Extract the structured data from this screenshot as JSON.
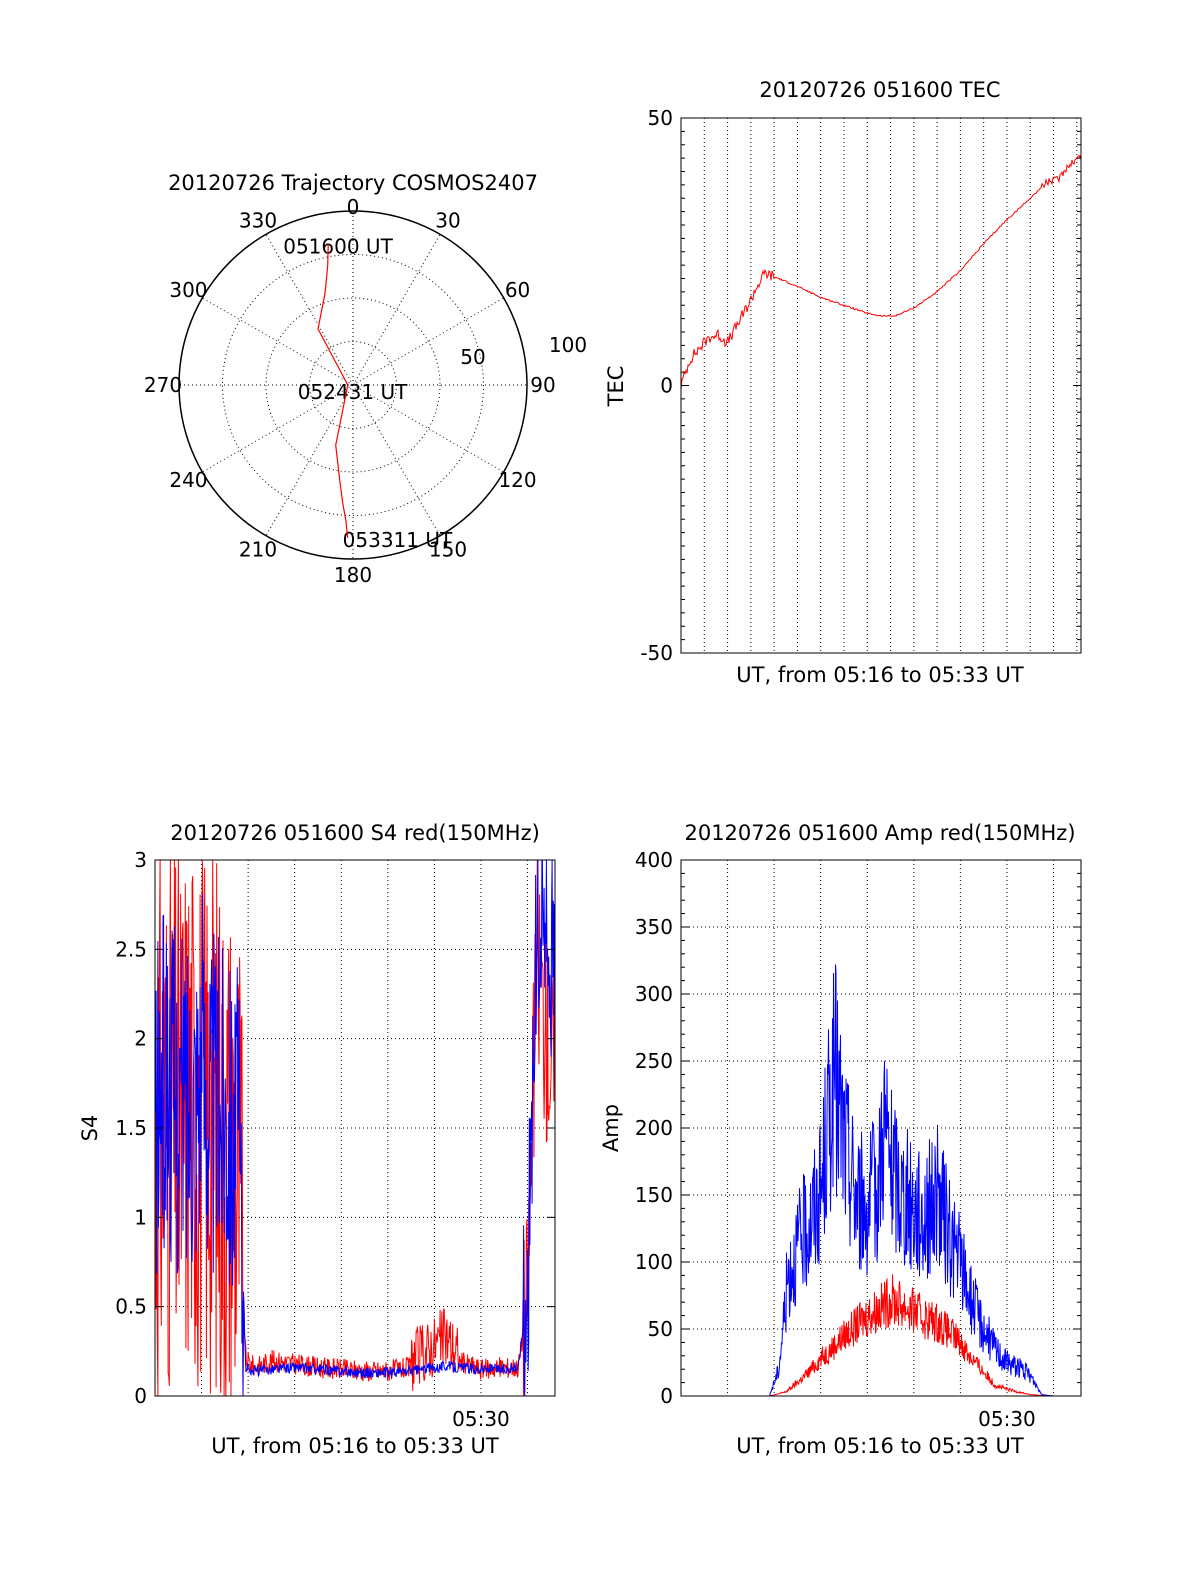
{
  "chart_data": [
    {
      "type": "polar",
      "title": "20120726 Trajectory COSMOS2407",
      "angle_labels": [
        "0",
        "30",
        "60",
        "90",
        "120",
        "150",
        "180",
        "210",
        "240",
        "270",
        "300",
        "330"
      ],
      "radius_labels": [
        "50",
        "100"
      ],
      "rlim": [
        0,
        100
      ],
      "grid": true,
      "series": [
        {
          "color": "#ff0000",
          "points": [
            [
              350,
              82
            ],
            [
              348,
              70
            ],
            [
              343,
              55
            ],
            [
              328,
              38
            ],
            [
              270,
              3
            ],
            [
              196,
              36
            ],
            [
              188,
              55
            ],
            [
              185,
              68
            ],
            [
              183,
              78
            ],
            [
              182,
              88
            ]
          ]
        }
      ],
      "annotations": [
        {
          "text": "051600 UT",
          "az": 350,
          "r": 82
        },
        {
          "text": "052431 UT",
          "az": 270,
          "r": 3
        },
        {
          "text": "053311 UT",
          "az": 182,
          "r": 88
        }
      ]
    },
    {
      "type": "line",
      "title": "20120726 051600 TEC",
      "ylabel": "TEC",
      "xlabel": "UT, from 05:16 to 05:33 UT",
      "x_range_min": [
        0,
        17.18
      ],
      "ylim": [
        -50,
        50
      ],
      "yticks": [
        "50",
        "0",
        "-50"
      ],
      "grid": "x-dotted",
      "series": [
        {
          "color": "#ff0000",
          "x": [
            0,
            0.4,
            0.8,
            1.2,
            1.6,
            2.0,
            2.5,
            3.0,
            3.2,
            3.6,
            4.2,
            5.0,
            6.0,
            7.0,
            8.0,
            8.6,
            9.2,
            10.0,
            11.0,
            12.0,
            13.0,
            14.0,
            15.0,
            15.7,
            16.2,
            16.6,
            17.18
          ],
          "y": [
            0,
            5,
            7,
            9,
            9.5,
            8,
            12,
            16,
            18,
            21,
            20,
            18.5,
            16.5,
            15,
            13.5,
            13,
            13,
            14.5,
            17.5,
            21.5,
            26.5,
            31,
            35,
            38,
            38.5,
            41,
            43
          ]
        }
      ]
    },
    {
      "type": "line",
      "title": "20120726 051600 S4 red(150MHz)",
      "ylabel": "S4",
      "xlabel": "UT, from 05:16 to 05:33 UT",
      "x_range_min": [
        0,
        17.18
      ],
      "xticks": [
        "05:30"
      ],
      "xtick_values": [
        14
      ],
      "ylim": [
        0,
        3
      ],
      "yticks": [
        "0",
        "0.5",
        "1",
        "1.5",
        "2",
        "2.5",
        "3"
      ],
      "grid": true,
      "series": [
        {
          "name": "",
          "color": "#ff0000",
          "x": [
            0,
            0.5,
            1.0,
            1.5,
            2.0,
            2.5,
            3.0,
            3.6,
            3.9,
            4.3,
            5,
            6,
            7,
            8,
            9,
            10,
            11,
            11.5,
            12,
            12.5,
            13,
            14,
            15,
            15.6,
            16,
            16.4,
            16.8,
            17.18
          ],
          "y": [
            1.4,
            1.6,
            1.5,
            1.7,
            1.55,
            1.6,
            1.4,
            1.3,
            0.2,
            0.16,
            0.2,
            0.18,
            0.16,
            0.15,
            0.14,
            0.14,
            0.16,
            0.2,
            0.25,
            0.3,
            0.2,
            0.15,
            0.16,
            0.16,
            0.5,
            2.5,
            2.0,
            1.8
          ]
        },
        {
          "name": "",
          "color": "#0000ff",
          "x": [
            0,
            0.5,
            1.0,
            1.5,
            2.0,
            2.5,
            3.0,
            3.6,
            3.9,
            4.3,
            5,
            6,
            7,
            8,
            9,
            10,
            11,
            11.5,
            12,
            12.5,
            13,
            14,
            15,
            15.6,
            16,
            16.4,
            16.8,
            17.18
          ],
          "y": [
            1.5,
            1.8,
            1.6,
            1.7,
            1.9,
            1.6,
            1.7,
            1.4,
            0.16,
            0.14,
            0.15,
            0.16,
            0.15,
            0.14,
            0.13,
            0.13,
            0.14,
            0.15,
            0.16,
            0.17,
            0.16,
            0.15,
            0.15,
            0.16,
            0.6,
            2.6,
            2.7,
            2.3
          ]
        }
      ]
    },
    {
      "type": "line",
      "title": "20120726 051600 Amp red(150MHz)",
      "ylabel": "Amp",
      "xlabel": "UT, from 05:16 to 05:33 UT",
      "x_range_min": [
        0,
        17.18
      ],
      "xticks": [
        "05:30"
      ],
      "xtick_values": [
        14
      ],
      "ylim": [
        0,
        400
      ],
      "yticks": [
        "0",
        "50",
        "100",
        "150",
        "200",
        "250",
        "300",
        "350",
        "400"
      ],
      "grid": true,
      "series": [
        {
          "name": "",
          "color": "#ff0000",
          "x": [
            0,
            3,
            3.8,
            4.5,
            5,
            5.5,
            6,
            6.5,
            7,
            7.5,
            8,
            8.5,
            9,
            9.5,
            10,
            10.5,
            11,
            11.5,
            12,
            12.5,
            13,
            13.5,
            14,
            14.5,
            15,
            16,
            17.18
          ],
          "y": [
            0,
            0,
            0,
            3,
            10,
            18,
            28,
            36,
            45,
            52,
            60,
            65,
            72,
            68,
            63,
            58,
            55,
            48,
            40,
            28,
            18,
            8,
            5,
            3,
            1,
            0,
            0
          ]
        },
        {
          "name": "",
          "color": "#0000ff",
          "x": [
            0,
            3,
            3.8,
            4.2,
            4.6,
            5,
            5.5,
            6,
            6.3,
            6.6,
            7,
            7.5,
            8,
            8.5,
            8.7,
            9,
            9.5,
            10,
            10.5,
            11,
            11.5,
            12,
            12.5,
            13,
            13.5,
            14,
            14.5,
            15,
            15.5,
            16,
            17.18
          ],
          "y": [
            0,
            0,
            0,
            20,
            90,
            110,
            130,
            150,
            200,
            240,
            190,
            150,
            140,
            160,
            210,
            170,
            150,
            140,
            135,
            150,
            120,
            100,
            70,
            50,
            35,
            25,
            22,
            15,
            1,
            0,
            0
          ]
        }
      ]
    }
  ]
}
